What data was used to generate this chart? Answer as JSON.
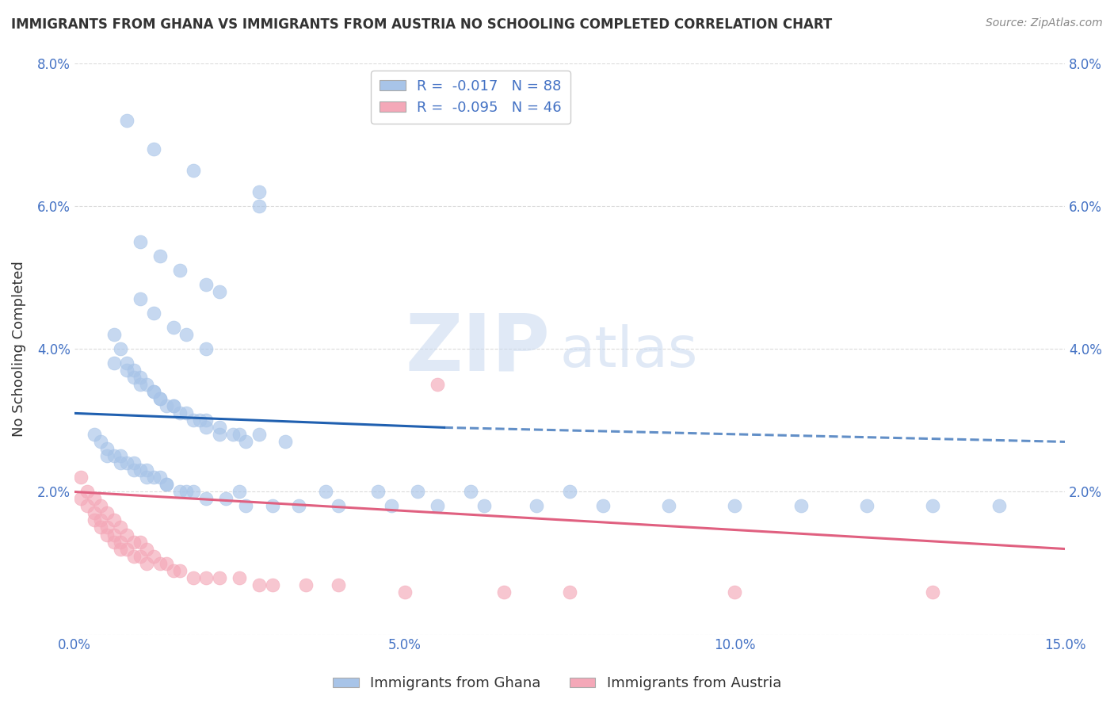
{
  "title": "IMMIGRANTS FROM GHANA VS IMMIGRANTS FROM AUSTRIA NO SCHOOLING COMPLETED CORRELATION CHART",
  "source": "Source: ZipAtlas.com",
  "ylabel": "No Schooling Completed",
  "watermark_zip": "ZIP",
  "watermark_atlas": "atlas",
  "xlim": [
    0.0,
    0.15
  ],
  "ylim": [
    0.0,
    0.08
  ],
  "xticks": [
    0.0,
    0.05,
    0.1,
    0.15
  ],
  "xticklabels": [
    "0.0%",
    "5.0%",
    "10.0%",
    "15.0%"
  ],
  "yticks": [
    0.0,
    0.02,
    0.04,
    0.06,
    0.08
  ],
  "yticklabels": [
    "",
    "2.0%",
    "4.0%",
    "6.0%",
    "8.0%"
  ],
  "legend1_label": "R =  -0.017   N = 88",
  "legend2_label": "R =  -0.095   N = 46",
  "legend1_series": "Immigrants from Ghana",
  "legend2_series": "Immigrants from Austria",
  "ghana_color": "#a8c4e8",
  "austria_color": "#f4a8b8",
  "ghana_line_color": "#2060b0",
  "austria_line_color": "#e06080",
  "background_color": "#ffffff",
  "grid_color": "#cccccc",
  "title_color": "#333333",
  "tick_label_color": "#4472c4",
  "ghana_x": [
    0.008,
    0.012,
    0.018,
    0.028,
    0.028,
    0.01,
    0.013,
    0.016,
    0.02,
    0.022,
    0.01,
    0.012,
    0.015,
    0.017,
    0.02,
    0.006,
    0.008,
    0.009,
    0.01,
    0.012,
    0.013,
    0.014,
    0.015,
    0.016,
    0.018,
    0.019,
    0.02,
    0.022,
    0.024,
    0.026,
    0.006,
    0.007,
    0.008,
    0.009,
    0.01,
    0.011,
    0.012,
    0.013,
    0.015,
    0.017,
    0.02,
    0.022,
    0.025,
    0.028,
    0.032,
    0.003,
    0.004,
    0.005,
    0.006,
    0.007,
    0.008,
    0.009,
    0.01,
    0.011,
    0.012,
    0.013,
    0.014,
    0.016,
    0.018,
    0.02,
    0.023,
    0.026,
    0.03,
    0.034,
    0.04,
    0.048,
    0.055,
    0.062,
    0.07,
    0.08,
    0.09,
    0.1,
    0.11,
    0.12,
    0.13,
    0.14,
    0.005,
    0.007,
    0.009,
    0.011,
    0.014,
    0.017,
    0.025,
    0.038,
    0.046,
    0.052,
    0.06,
    0.075
  ],
  "ghana_y": [
    0.072,
    0.068,
    0.065,
    0.062,
    0.06,
    0.055,
    0.053,
    0.051,
    0.049,
    0.048,
    0.047,
    0.045,
    0.043,
    0.042,
    0.04,
    0.038,
    0.037,
    0.036,
    0.035,
    0.034,
    0.033,
    0.032,
    0.032,
    0.031,
    0.03,
    0.03,
    0.029,
    0.028,
    0.028,
    0.027,
    0.042,
    0.04,
    0.038,
    0.037,
    0.036,
    0.035,
    0.034,
    0.033,
    0.032,
    0.031,
    0.03,
    0.029,
    0.028,
    0.028,
    0.027,
    0.028,
    0.027,
    0.026,
    0.025,
    0.025,
    0.024,
    0.024,
    0.023,
    0.023,
    0.022,
    0.022,
    0.021,
    0.02,
    0.02,
    0.019,
    0.019,
    0.018,
    0.018,
    0.018,
    0.018,
    0.018,
    0.018,
    0.018,
    0.018,
    0.018,
    0.018,
    0.018,
    0.018,
    0.018,
    0.018,
    0.018,
    0.025,
    0.024,
    0.023,
    0.022,
    0.021,
    0.02,
    0.02,
    0.02,
    0.02,
    0.02,
    0.02,
    0.02
  ],
  "austria_x": [
    0.001,
    0.001,
    0.002,
    0.002,
    0.003,
    0.003,
    0.003,
    0.004,
    0.004,
    0.004,
    0.005,
    0.005,
    0.005,
    0.006,
    0.006,
    0.006,
    0.007,
    0.007,
    0.007,
    0.008,
    0.008,
    0.009,
    0.009,
    0.01,
    0.01,
    0.011,
    0.011,
    0.012,
    0.013,
    0.014,
    0.015,
    0.016,
    0.018,
    0.02,
    0.022,
    0.025,
    0.028,
    0.03,
    0.035,
    0.04,
    0.05,
    0.055,
    0.065,
    0.075,
    0.1,
    0.13
  ],
  "austria_y": [
    0.022,
    0.019,
    0.02,
    0.018,
    0.019,
    0.017,
    0.016,
    0.018,
    0.016,
    0.015,
    0.017,
    0.015,
    0.014,
    0.016,
    0.014,
    0.013,
    0.015,
    0.013,
    0.012,
    0.014,
    0.012,
    0.013,
    0.011,
    0.013,
    0.011,
    0.012,
    0.01,
    0.011,
    0.01,
    0.01,
    0.009,
    0.009,
    0.008,
    0.008,
    0.008,
    0.008,
    0.007,
    0.007,
    0.007,
    0.007,
    0.006,
    0.035,
    0.006,
    0.006,
    0.006,
    0.006
  ]
}
